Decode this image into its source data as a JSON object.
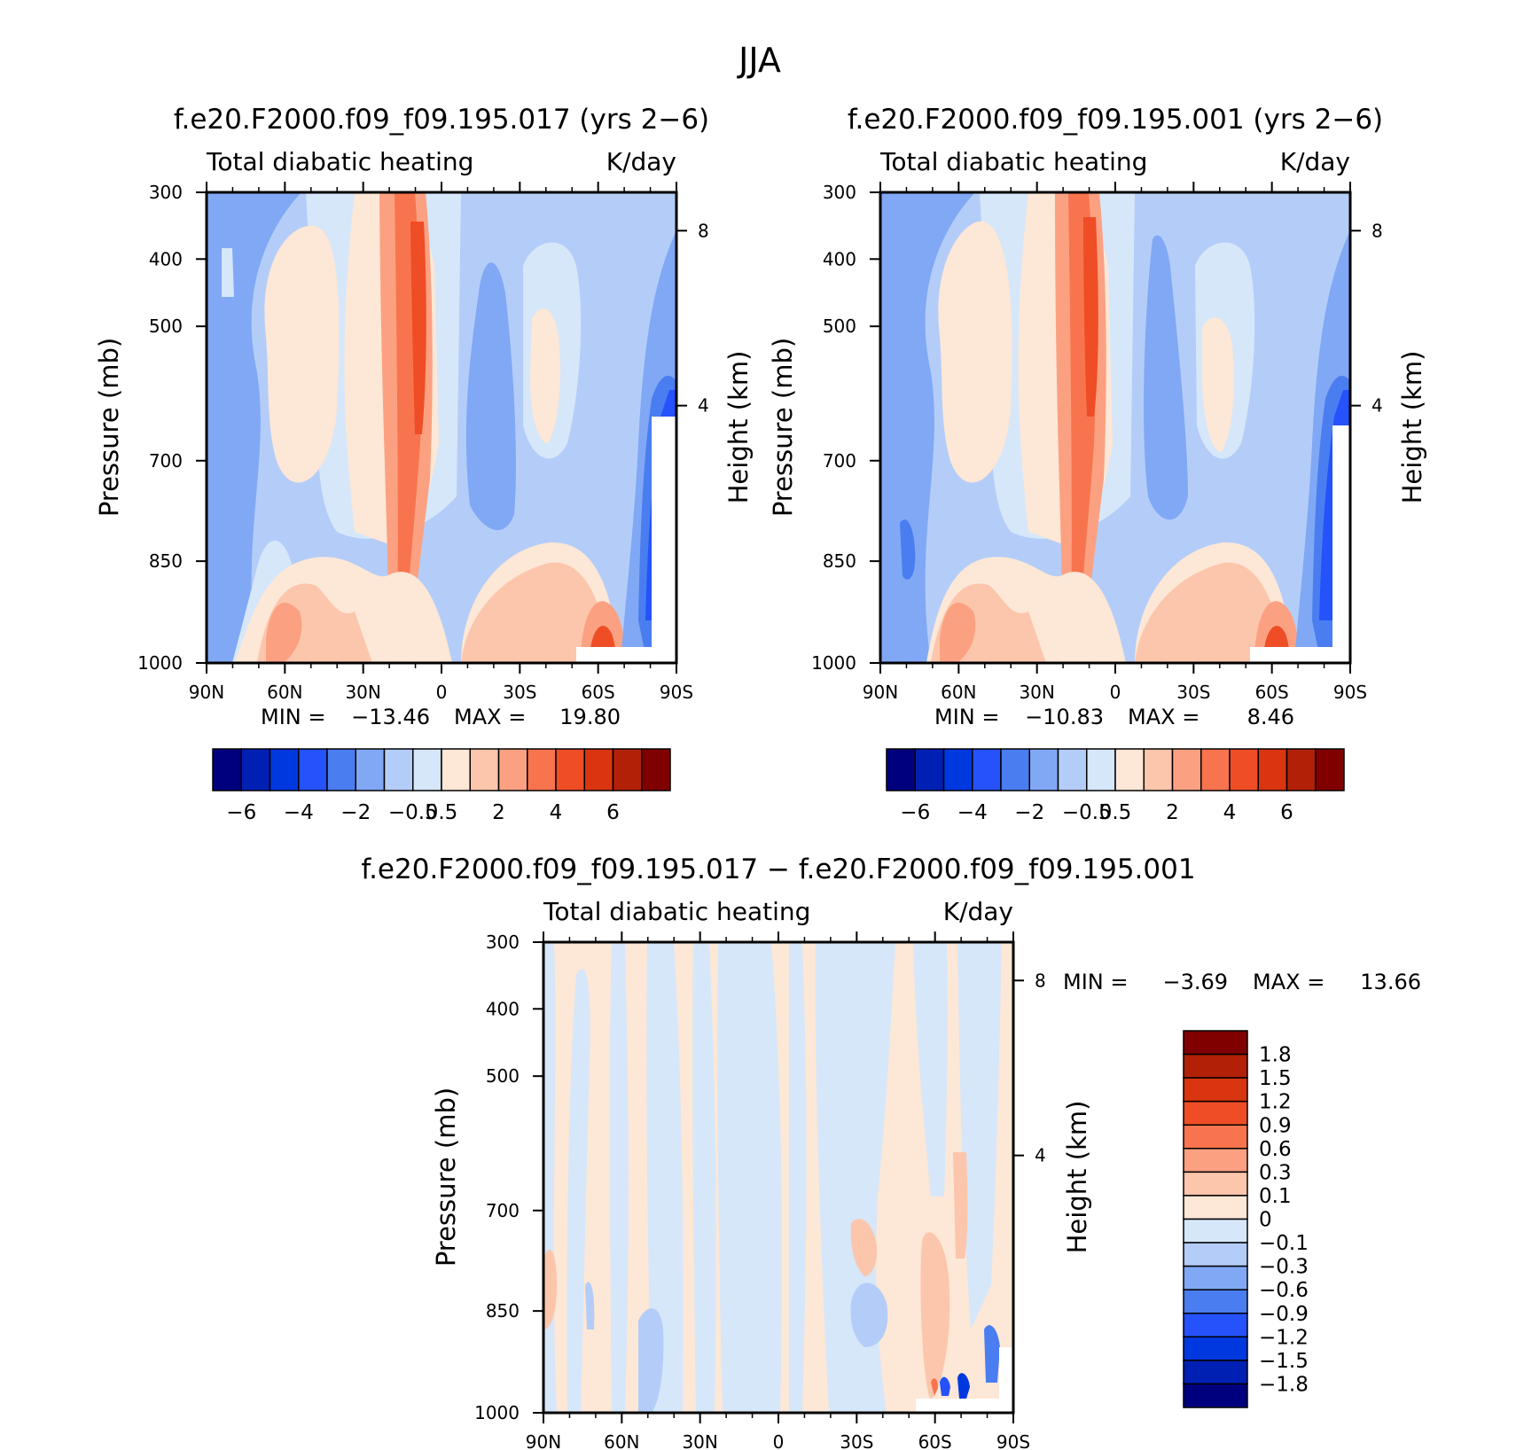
{
  "figure_title": "JJA",
  "chart_data": [
    {
      "type": "heatmap",
      "title": "f.e20.F2000.f09_f09.195.017 (yrs 2−6)",
      "left_label": "Total diabatic heating",
      "right_label": "K/day",
      "ylabel": "Pressure (mb)",
      "ylabel_right": "Height (km)",
      "x_ticks": [
        "90N",
        "60N",
        "30N",
        "0",
        "30S",
        "60S",
        "90S"
      ],
      "y_ticks": [
        "300",
        "400",
        "500",
        "700",
        "850",
        "1000"
      ],
      "y_ticks_right": [
        "8",
        "4"
      ],
      "min_label": "MIN =",
      "min_value": "−13.46",
      "max_label": "MAX =",
      "max_value": "19.80",
      "colorbar_labels": [
        "−6",
        "−4",
        "−2",
        "−0.5",
        "0.5",
        "2",
        "4",
        "6"
      ],
      "colorbar_colors": [
        "#00007f",
        "#0020b4",
        "#0038e0",
        "#2552fa",
        "#4a7df0",
        "#80a8f5",
        "#b4cdf8",
        "#d6e7fa",
        "#fde7d6",
        "#fcc6ac",
        "#fba182",
        "#f8744e",
        "#ee4d26",
        "#d83510",
        "#b22107",
        "#800000"
      ]
    },
    {
      "type": "heatmap",
      "title": "f.e20.F2000.f09_f09.195.001 (yrs 2−6)",
      "left_label": "Total diabatic heating",
      "right_label": "K/day",
      "ylabel": "Pressure (mb)",
      "ylabel_right": "Height (km)",
      "x_ticks": [
        "90N",
        "60N",
        "30N",
        "0",
        "30S",
        "60S",
        "90S"
      ],
      "y_ticks": [
        "300",
        "400",
        "500",
        "700",
        "850",
        "1000"
      ],
      "y_ticks_right": [
        "8",
        "4"
      ],
      "min_label": "MIN =",
      "min_value": "−10.83",
      "max_label": "MAX =",
      "max_value": "8.46",
      "colorbar_labels": [
        "−6",
        "−4",
        "−2",
        "−0.5",
        "0.5",
        "2",
        "4",
        "6"
      ],
      "colorbar_colors": [
        "#00007f",
        "#0020b4",
        "#0038e0",
        "#2552fa",
        "#4a7df0",
        "#80a8f5",
        "#b4cdf8",
        "#d6e7fa",
        "#fde7d6",
        "#fcc6ac",
        "#fba182",
        "#f8744e",
        "#ee4d26",
        "#d83510",
        "#b22107",
        "#800000"
      ]
    },
    {
      "type": "heatmap",
      "title": "f.e20.F2000.f09_f09.195.017 − f.e20.F2000.f09_f09.195.001",
      "left_label": "Total diabatic heating",
      "right_label": "K/day",
      "ylabel": "Pressure (mb)",
      "ylabel_right": "Height (km)",
      "x_ticks": [
        "90N",
        "60N",
        "30N",
        "0",
        "30S",
        "60S",
        "90S"
      ],
      "y_ticks": [
        "300",
        "400",
        "500",
        "700",
        "850",
        "1000"
      ],
      "y_ticks_right": [
        "8",
        "4"
      ],
      "min_label": "MIN =",
      "min_value": "−3.69",
      "max_label": "MAX =",
      "max_value": "13.66",
      "colorbar_labels": [
        "1.8",
        "1.5",
        "1.2",
        "0.9",
        "0.6",
        "0.3",
        "0.1",
        "0",
        "−0.1",
        "−0.3",
        "−0.6",
        "−0.9",
        "−1.2",
        "−1.5",
        "−1.8"
      ],
      "colorbar_colors": [
        "#800000",
        "#b22107",
        "#d83510",
        "#ee4d26",
        "#f8744e",
        "#fba182",
        "#fcc6ac",
        "#fde7d6",
        "#d6e7fa",
        "#b4cdf8",
        "#80a8f5",
        "#4a7df0",
        "#2552fa",
        "#0038e0",
        "#0020b4",
        "#00007f"
      ]
    }
  ]
}
